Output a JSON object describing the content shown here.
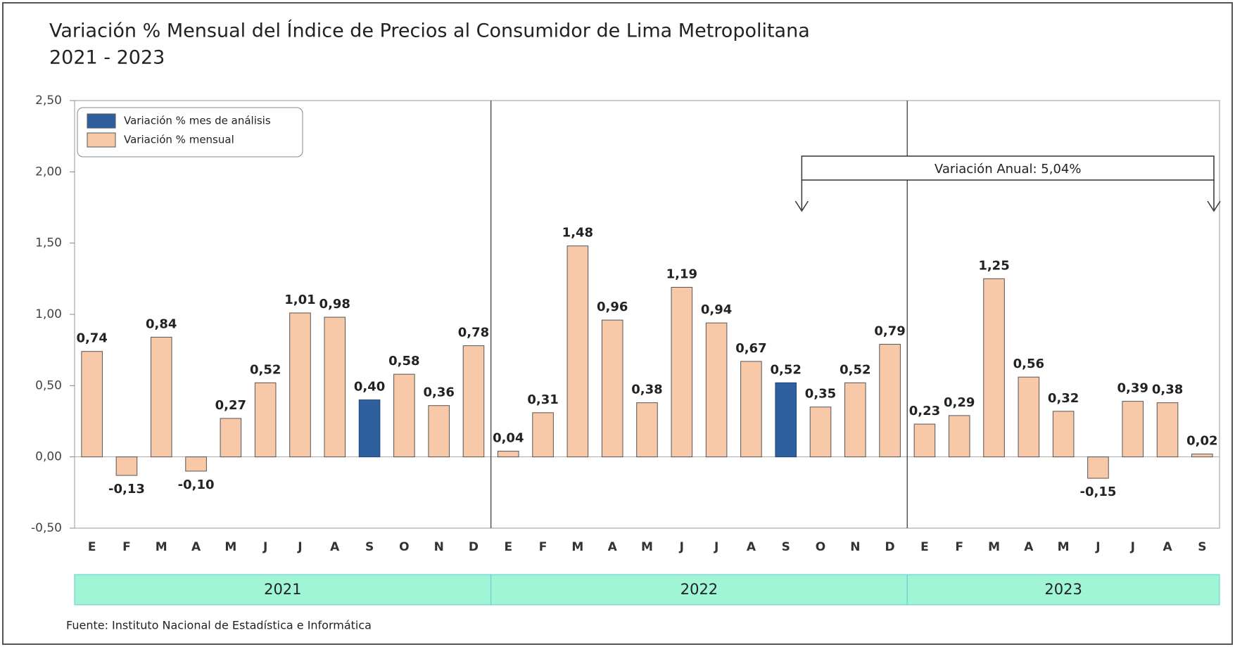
{
  "chart_data": {
    "type": "bar",
    "title": "Variación % Mensual del Índice de Precios al Consumidor de Lima Metropolitana",
    "subtitle": "2021 - 2023",
    "source": "Fuente: Instituto Nacional de Estadística e Informática",
    "annotation": "Variación Anual: 5,04%",
    "legend": [
      {
        "name": "Variación % mes de análisis",
        "color": "#2e5f9e"
      },
      {
        "name": "Variación % mensual",
        "color": "#f8c9a8"
      }
    ],
    "ylim": [
      -0.5,
      2.5
    ],
    "yticks": [
      {
        "value": -0.5,
        "label": "-0,50"
      },
      {
        "value": 0,
        "label": "0,00"
      },
      {
        "value": 0.5,
        "label": "0,50"
      },
      {
        "value": 1,
        "label": "1,00"
      },
      {
        "value": 1.5,
        "label": "1,50"
      },
      {
        "value": 2,
        "label": "2,00"
      },
      {
        "value": 2.5,
        "label": "2,50"
      }
    ],
    "groups": [
      {
        "name": "2021",
        "categories": [
          "E",
          "F",
          "M",
          "A",
          "M",
          "J",
          "J",
          "A",
          "S",
          "O",
          "N",
          "D"
        ],
        "values": [
          0.74,
          -0.13,
          0.84,
          -0.1,
          0.27,
          0.52,
          1.01,
          0.98,
          0.4,
          0.58,
          0.36,
          0.78
        ],
        "value_labels": [
          "0,74",
          "-0,13",
          "0,84",
          "-0,10",
          "0,27",
          "0,52",
          "1,01",
          "0,98",
          "0,40",
          "0,58",
          "0,36",
          "0,78"
        ],
        "colors": [
          "#f8c9a8",
          "#f8c9a8",
          "#f8c9a8",
          "#f8c9a8",
          "#f8c9a8",
          "#f8c9a8",
          "#f8c9a8",
          "#f8c9a8",
          "#2e5f9e",
          "#f8c9a8",
          "#f8c9a8",
          "#f8c9a8"
        ]
      },
      {
        "name": "2022",
        "categories": [
          "E",
          "F",
          "M",
          "A",
          "M",
          "J",
          "J",
          "A",
          "S",
          "O",
          "N",
          "D"
        ],
        "values": [
          0.04,
          0.31,
          1.48,
          0.96,
          0.38,
          1.19,
          0.94,
          0.67,
          0.52,
          0.35,
          0.52,
          0.79
        ],
        "value_labels": [
          "0,04",
          "0,31",
          "1,48",
          "0,96",
          "0,38",
          "1,19",
          "0,94",
          "0,67",
          "0,52",
          "0,35",
          "0,52",
          "0,79"
        ],
        "colors": [
          "#f8c9a8",
          "#f8c9a8",
          "#f8c9a8",
          "#f8c9a8",
          "#f8c9a8",
          "#f8c9a8",
          "#f8c9a8",
          "#f8c9a8",
          "#2e5f9e",
          "#f8c9a8",
          "#f8c9a8",
          "#f8c9a8"
        ]
      },
      {
        "name": "2023",
        "categories": [
          "E",
          "F",
          "M",
          "A",
          "M",
          "J",
          "J",
          "A",
          "S"
        ],
        "values": [
          0.23,
          0.29,
          1.25,
          0.56,
          0.32,
          -0.15,
          0.39,
          0.38,
          0.02
        ],
        "value_labels": [
          "0,23",
          "0,29",
          "1,25",
          "0,56",
          "0,32",
          "-0,15",
          "0,39",
          "0,38",
          "0,02"
        ],
        "colors": [
          "#f8c9a8",
          "#f8c9a8",
          "#f8c9a8",
          "#f8c9a8",
          "#f8c9a8",
          "#f8c9a8",
          "#f8c9a8",
          "#f8c9a8",
          "#f8c9a8"
        ]
      }
    ]
  }
}
